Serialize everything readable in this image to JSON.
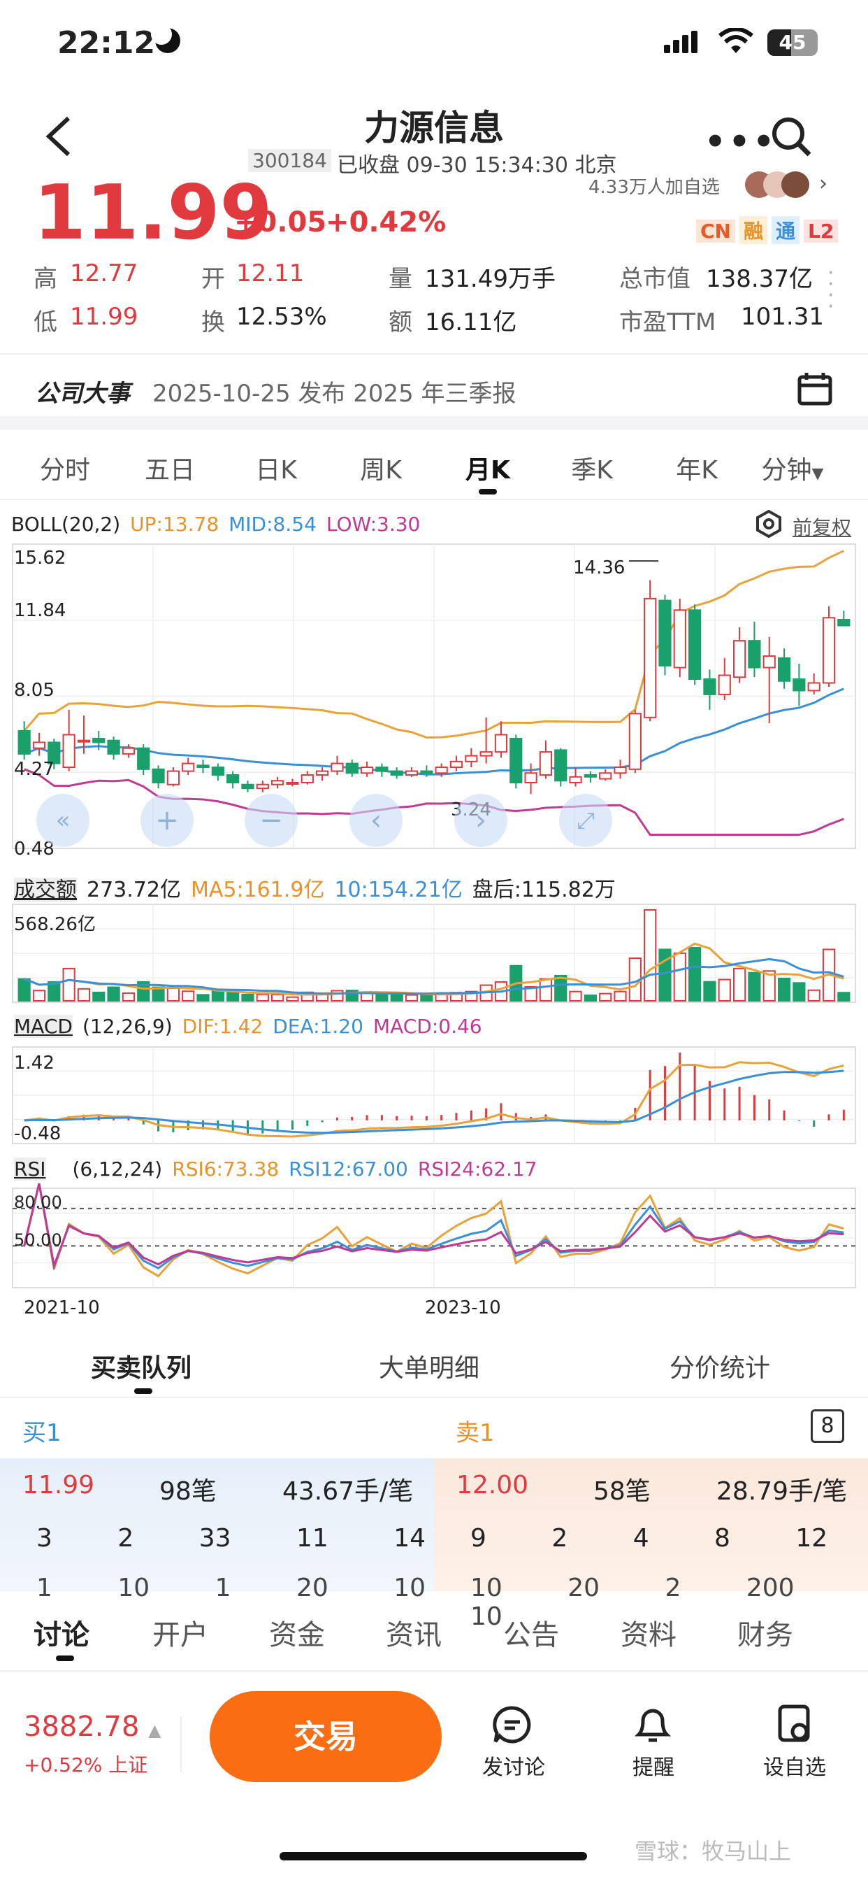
{
  "status": {
    "time": "22:12",
    "battery": "45"
  },
  "nav": {
    "title": "力源信息",
    "code": "300184",
    "status_text": "已收盘 09-30 15:34:30 北京"
  },
  "quote": {
    "price": "11.99",
    "change": "+0.05",
    "change_pct": "+0.42%",
    "watch_text": "4.33万人加自选",
    "badges": [
      "CN",
      "融",
      "通",
      "L2"
    ],
    "stats": [
      {
        "label": "高",
        "value": "12.77"
      },
      {
        "label": "开",
        "value": "12.11"
      },
      {
        "label": "量",
        "value": "131.49万手"
      },
      {
        "label": "总市值",
        "value": "138.37亿"
      },
      {
        "label": "低",
        "value": "11.99"
      },
      {
        "label": "换",
        "value": "12.53%"
      },
      {
        "label": "额",
        "value": "16.11亿"
      },
      {
        "label": "市盈TTM",
        "value": "101.31"
      }
    ]
  },
  "event": {
    "title": "公司大事",
    "text": "2025-10-25 发布 2025 年三季报"
  },
  "tabs": [
    "分时",
    "五日",
    "日K",
    "周K",
    "月K",
    "季K",
    "年K",
    "分钟"
  ],
  "active_tab": "月K",
  "boll": {
    "name": "BOLL(20,2)",
    "up": "UP:13.78",
    "mid": "MID:8.54",
    "low": "LOW:3.30",
    "restore": "前复权",
    "y_labels": [
      "15.62",
      "11.84",
      "8.05",
      "4.27",
      "0.48"
    ],
    "max_label": "14.36",
    "min_label": "3.24"
  },
  "volume": {
    "name": "成交额",
    "value": "273.72亿",
    "ma5": "MA5:161.9亿",
    "ma10": "10:154.21亿",
    "after": "盘后:115.82万",
    "y_label": "568.26亿"
  },
  "macd": {
    "name": "MACD",
    "params": "(12,26,9)",
    "dif": "DIF:1.42",
    "dea": "DEA:1.20",
    "macd": "MACD:0.46",
    "y_top": "1.42",
    "y_bottom": "-0.48"
  },
  "rsi": {
    "name": "RSI",
    "params": "(6,12,24)",
    "rsi6": "RSI6:73.38",
    "rsi12": "RSI12:67.00",
    "rsi24": "RSI24:62.17",
    "y_top": "80.00",
    "y_mid": "50.00"
  },
  "x_labels": [
    "2021-10",
    "2023-10"
  ],
  "chart_data": {
    "type": "candlestick",
    "candles": [
      [
        6.5,
        5.3,
        7.0,
        5.0
      ],
      [
        5.6,
        5.9,
        6.4,
        5.2
      ],
      [
        5.9,
        4.8,
        6.1,
        4.5
      ],
      [
        4.6,
        6.3,
        7.6,
        4.4
      ],
      [
        6.0,
        6.0,
        7.3,
        5.3
      ],
      [
        6.1,
        5.9,
        6.5,
        5.5
      ],
      [
        6.0,
        5.3,
        6.2,
        5.0
      ],
      [
        5.3,
        5.6,
        5.8,
        5.1
      ],
      [
        5.6,
        4.5,
        5.8,
        4.2
      ],
      [
        4.5,
        3.8,
        4.7,
        3.5
      ],
      [
        3.7,
        4.4,
        4.6,
        3.6
      ],
      [
        4.4,
        4.8,
        5.1,
        4.2
      ],
      [
        4.7,
        4.6,
        5.0,
        4.3
      ],
      [
        4.6,
        4.2,
        4.8,
        3.9
      ],
      [
        4.2,
        3.8,
        4.4,
        3.5
      ],
      [
        3.7,
        3.5,
        3.9,
        3.3
      ],
      [
        3.5,
        3.7,
        3.9,
        3.3
      ],
      [
        3.7,
        3.9,
        4.1,
        3.5
      ],
      [
        3.8,
        3.8,
        4.0,
        3.6
      ],
      [
        3.8,
        4.2,
        4.4,
        3.7
      ],
      [
        4.2,
        4.4,
        4.6,
        3.9
      ],
      [
        4.4,
        4.8,
        5.2,
        4.2
      ],
      [
        4.8,
        4.3,
        5.0,
        4.1
      ],
      [
        4.3,
        4.6,
        4.9,
        4.1
      ],
      [
        4.6,
        4.4,
        4.8,
        4.1
      ],
      [
        4.4,
        4.2,
        4.6,
        4.0
      ],
      [
        4.2,
        4.4,
        4.6,
        4.1
      ],
      [
        4.4,
        4.3,
        4.7,
        4.1
      ],
      [
        4.3,
        4.6,
        4.8,
        4.1
      ],
      [
        4.6,
        4.9,
        5.2,
        4.4
      ],
      [
        4.9,
        5.2,
        5.6,
        4.6
      ],
      [
        5.2,
        5.4,
        7.2,
        4.8
      ],
      [
        5.4,
        6.3,
        7.0,
        5.1
      ],
      [
        6.1,
        3.8,
        6.3,
        3.5
      ],
      [
        3.8,
        4.3,
        4.8,
        3.2
      ],
      [
        4.2,
        5.4,
        6.0,
        4.0
      ],
      [
        5.5,
        3.9,
        5.6,
        3.6
      ],
      [
        3.8,
        4.1,
        4.6,
        3.6
      ],
      [
        4.2,
        4.1,
        4.4,
        3.8
      ],
      [
        4.0,
        4.3,
        4.5,
        3.9
      ],
      [
        4.3,
        4.6,
        5.0,
        4.0
      ],
      [
        4.5,
        7.4,
        7.6,
        4.3
      ],
      [
        7.2,
        13.4,
        14.36,
        7.0
      ],
      [
        13.3,
        9.9,
        13.6,
        9.4
      ],
      [
        9.8,
        12.8,
        13.4,
        9.3
      ],
      [
        12.8,
        9.2,
        13.1,
        8.9
      ],
      [
        9.2,
        8.4,
        9.7,
        7.6
      ],
      [
        8.4,
        9.4,
        10.3,
        8.1
      ],
      [
        9.3,
        11.2,
        11.9,
        9.0
      ],
      [
        11.2,
        9.8,
        12.2,
        9.3
      ],
      [
        9.8,
        10.4,
        11.4,
        6.9
      ],
      [
        10.3,
        9.1,
        10.8,
        8.7
      ],
      [
        9.2,
        8.6,
        10.0,
        7.8
      ],
      [
        8.6,
        9.0,
        9.5,
        8.4
      ],
      [
        9.0,
        12.4,
        13.0,
        8.8
      ],
      [
        12.3,
        11.99,
        12.77,
        11.99
      ]
    ],
    "ylim": [
      0.48,
      15.62
    ]
  }
}
